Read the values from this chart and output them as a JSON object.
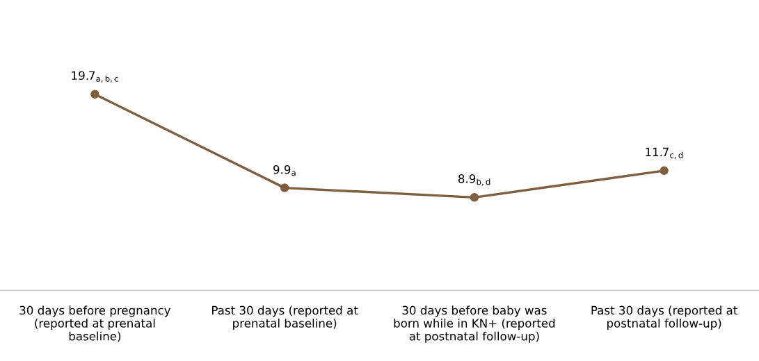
{
  "chart_data": {
    "type": "line",
    "categories": [
      "30 days before pregnancy\n(reported at prenatal\nbaseline)",
      "Past 30 days (reported at\nprenatal baseline)",
      "30 days before baby was\nborn while in KN+ (reported\nat postnatal follow-up)",
      "Past 30 days (reported at\npostnatal follow-up)"
    ],
    "series": [
      {
        "color": "#7f5f3f",
        "values": [
          19.7,
          9.9,
          8.9,
          11.7
        ],
        "value_labels": [
          "19.7$_{a,b,c}$",
          "9.9$_{a}$",
          "8.9$_{b,d}$",
          "11.7$_{c,d}$"
        ]
      }
    ],
    "marker": "circle",
    "line_style": "solid",
    "grid": false,
    "legend": false,
    "tick_labels": "x"
  }
}
